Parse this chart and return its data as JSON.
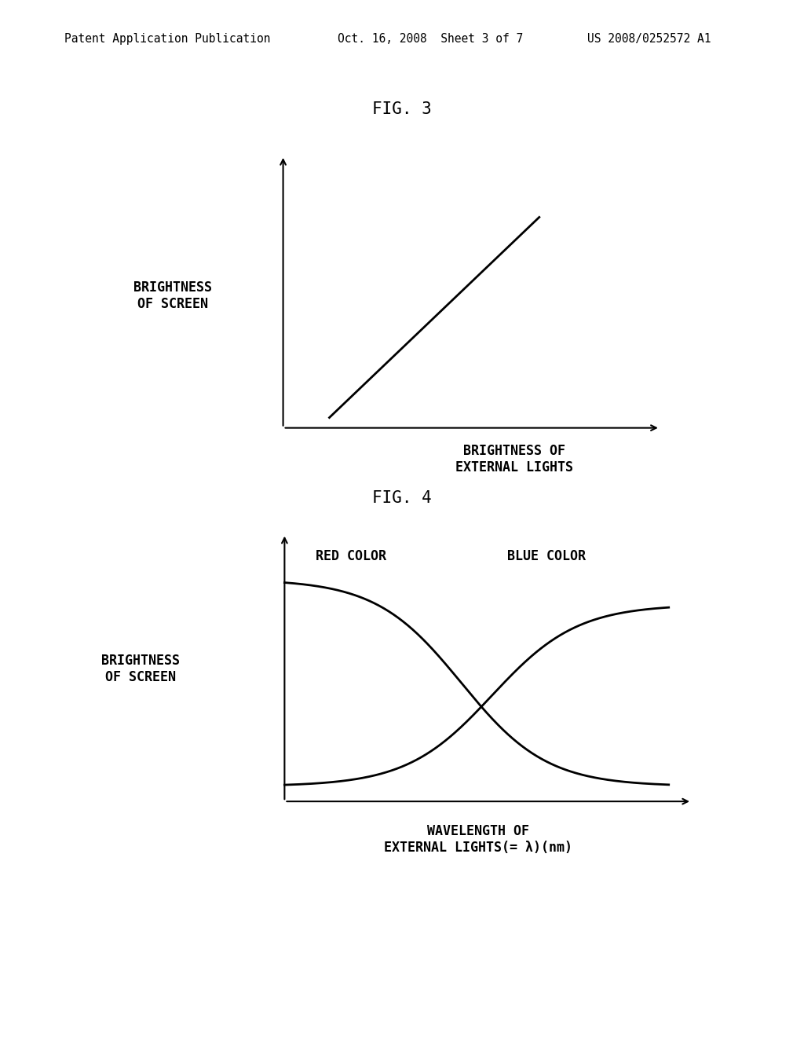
{
  "background_color": "#ffffff",
  "header_left": "Patent Application Publication",
  "header_mid": "Oct. 16, 2008  Sheet 3 of 7",
  "header_right": "US 2008/0252572 A1",
  "fig3_title": "FIG. 3",
  "fig3_ylabel": "BRIGHTNESS\nOF SCREEN",
  "fig3_xlabel": "BRIGHTNESS OF\nEXTERNAL LIGHTS",
  "fig4_title": "FIG. 4",
  "fig4_ylabel": "BRIGHTNESS\nOF SCREEN",
  "fig4_xlabel": "WAVELENGTH OF\nEXTERNAL LIGHTS(= λ)(nm)",
  "fig4_label_red": "RED COLOR",
  "fig4_label_blue": "BLUE COLOR",
  "line_color": "#000000",
  "line_width": 2.0,
  "header_fontsize": 10.5,
  "title_fontsize": 15,
  "label_fontsize": 12,
  "ylabel_fontsize": 12
}
